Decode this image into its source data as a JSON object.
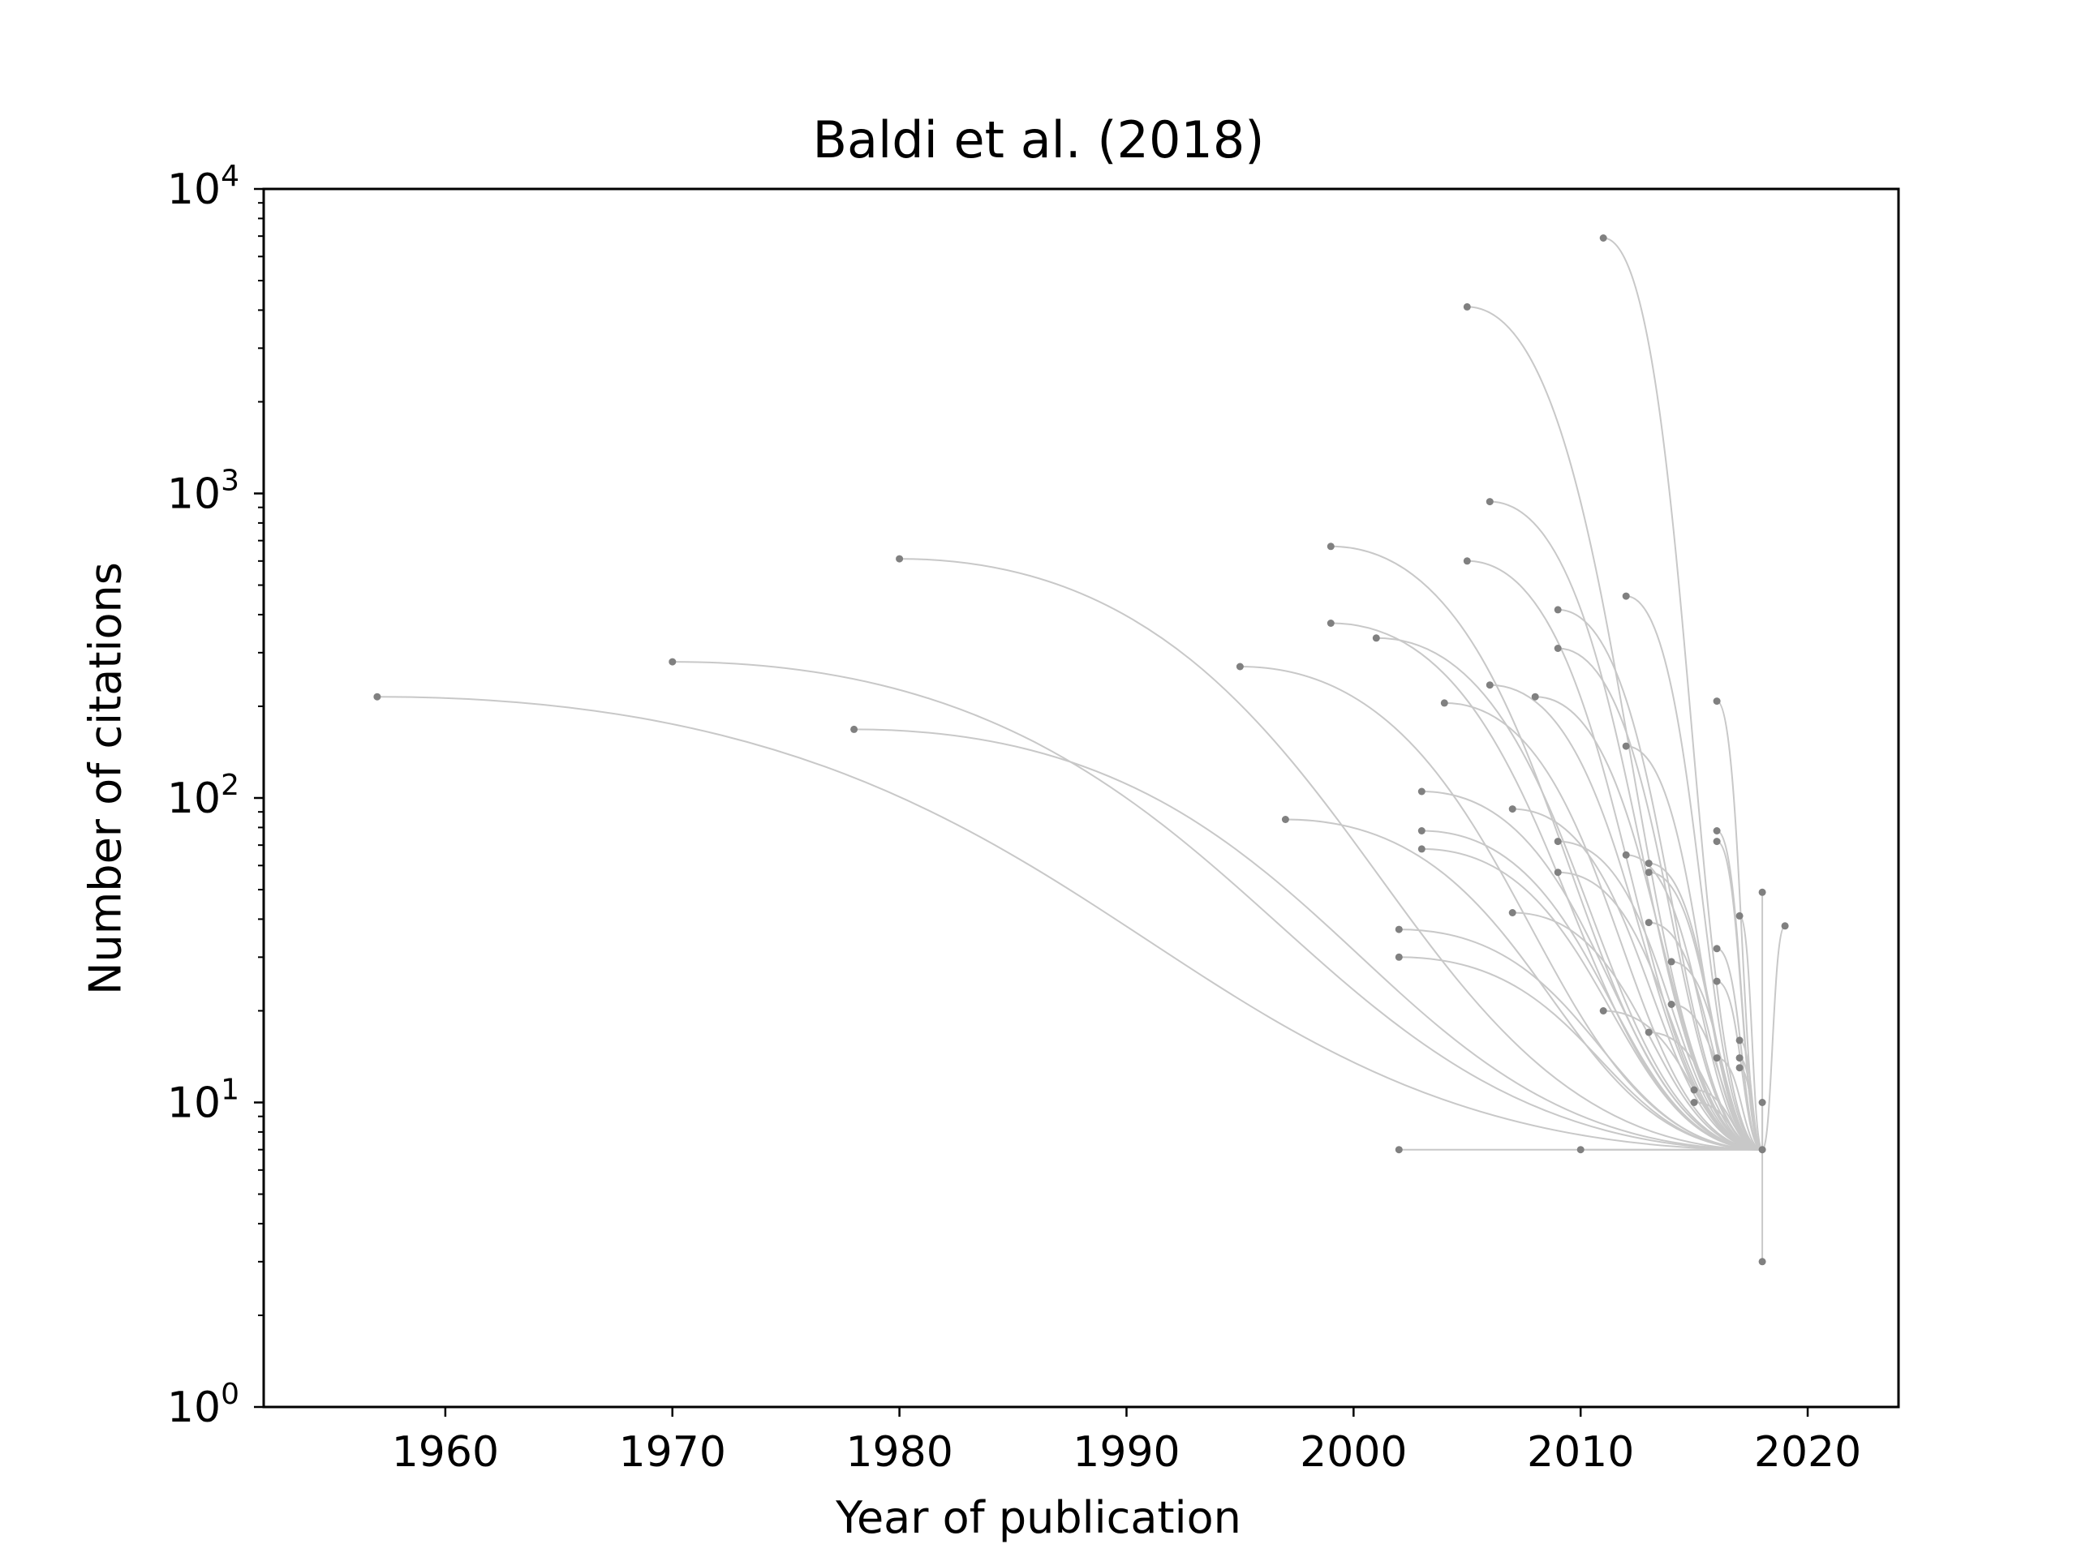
{
  "chart_data": {
    "type": "scatter",
    "title": "Baldi et al. (2018)",
    "xlabel": "Year of publication",
    "ylabel": "Number of citations",
    "xlim": [
      1952,
      2024
    ],
    "ylim": [
      1,
      10000
    ],
    "yscale": "log",
    "xticks": [
      1960,
      1970,
      1980,
      1990,
      2000,
      2010,
      2020
    ],
    "yticks": [
      {
        "value": 1,
        "base": "10",
        "exp": "0"
      },
      {
        "value": 10,
        "base": "10",
        "exp": "1"
      },
      {
        "value": 100,
        "base": "10",
        "exp": "2"
      },
      {
        "value": 1000,
        "base": "10",
        "exp": "3"
      },
      {
        "value": 10000,
        "base": "10",
        "exp": "4"
      }
    ],
    "grid": false,
    "target": {
      "x": 2018,
      "y": 7
    },
    "point_color": "#808080",
    "line_color": "#c8c8c8",
    "points": [
      {
        "x": 1957,
        "y": 215
      },
      {
        "x": 1970,
        "y": 280
      },
      {
        "x": 1978,
        "y": 168
      },
      {
        "x": 1980,
        "y": 610
      },
      {
        "x": 1995,
        "y": 270
      },
      {
        "x": 1997,
        "y": 85
      },
      {
        "x": 1999,
        "y": 670
      },
      {
        "x": 1999,
        "y": 375
      },
      {
        "x": 2001,
        "y": 335
      },
      {
        "x": 2002,
        "y": 37
      },
      {
        "x": 2002,
        "y": 30
      },
      {
        "x": 2002,
        "y": 7
      },
      {
        "x": 2003,
        "y": 105
      },
      {
        "x": 2003,
        "y": 78
      },
      {
        "x": 2003,
        "y": 68
      },
      {
        "x": 2004,
        "y": 205
      },
      {
        "x": 2005,
        "y": 4100
      },
      {
        "x": 2005,
        "y": 600
      },
      {
        "x": 2006,
        "y": 940
      },
      {
        "x": 2006,
        "y": 235
      },
      {
        "x": 2007,
        "y": 92
      },
      {
        "x": 2007,
        "y": 42
      },
      {
        "x": 2008,
        "y": 215
      },
      {
        "x": 2009,
        "y": 415
      },
      {
        "x": 2009,
        "y": 310
      },
      {
        "x": 2009,
        "y": 72
      },
      {
        "x": 2009,
        "y": 57
      },
      {
        "x": 2010,
        "y": 7
      },
      {
        "x": 2011,
        "y": 6900
      },
      {
        "x": 2011,
        "y": 20
      },
      {
        "x": 2012,
        "y": 460
      },
      {
        "x": 2012,
        "y": 148
      },
      {
        "x": 2012,
        "y": 65
      },
      {
        "x": 2013,
        "y": 61
      },
      {
        "x": 2013,
        "y": 57
      },
      {
        "x": 2013,
        "y": 39
      },
      {
        "x": 2013,
        "y": 17
      },
      {
        "x": 2014,
        "y": 29
      },
      {
        "x": 2014,
        "y": 21
      },
      {
        "x": 2015,
        "y": 11
      },
      {
        "x": 2015,
        "y": 10
      },
      {
        "x": 2016,
        "y": 208
      },
      {
        "x": 2016,
        "y": 78
      },
      {
        "x": 2016,
        "y": 72
      },
      {
        "x": 2016,
        "y": 32
      },
      {
        "x": 2016,
        "y": 25
      },
      {
        "x": 2016,
        "y": 14
      },
      {
        "x": 2017,
        "y": 41
      },
      {
        "x": 2017,
        "y": 16
      },
      {
        "x": 2017,
        "y": 14
      },
      {
        "x": 2017,
        "y": 13
      },
      {
        "x": 2018,
        "y": 49
      },
      {
        "x": 2018,
        "y": 10
      },
      {
        "x": 2018,
        "y": 7
      },
      {
        "x": 2018,
        "y": 3
      },
      {
        "x": 2019,
        "y": 38
      }
    ]
  }
}
